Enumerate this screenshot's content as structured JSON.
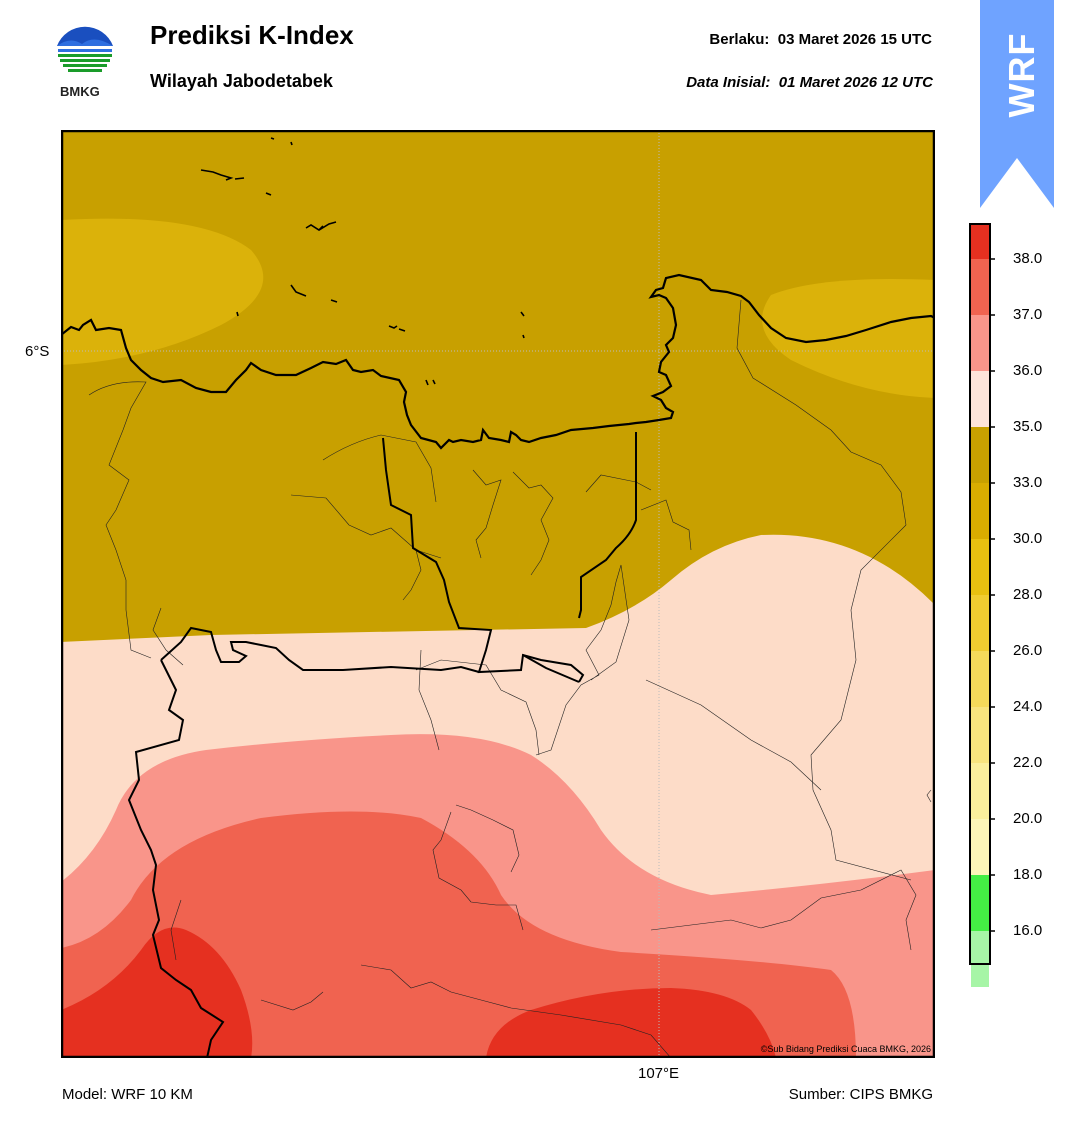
{
  "header": {
    "title": "Prediksi K-Index",
    "subtitle": "Wilayah Jabodetabek",
    "valid_line": "Berlaku:  03 Maret 2026 15 UTC",
    "init_line": "Data Inisial:  01 Maret 2026 12 UTC"
  },
  "logo": {
    "text": "BMKG",
    "name": "bmkg-logo"
  },
  "badge": {
    "text": "WRF",
    "color": "#6fa3ff"
  },
  "map": {
    "lat_label": "6°S",
    "lon_label": "107°E",
    "credit": "©Sub Bidang Prediksi Cuaca BMKG, 2026",
    "zones": [
      {
        "range": "33.0–35.0",
        "color": "#c8a000"
      },
      {
        "range": "35.0–36.0",
        "color": "#fddcc8"
      },
      {
        "range": "36.0–37.0",
        "color": "#f9958a"
      },
      {
        "range": "37.0–38.0",
        "color": "#f06350"
      },
      {
        "range": "> 38.0",
        "color": "#e53020"
      },
      {
        "range": "30.0–33.0",
        "color": "#dbb20a"
      }
    ]
  },
  "colorbar": {
    "ticks": [
      "38.0",
      "37.0",
      "36.0",
      "35.0",
      "33.0",
      "30.0",
      "28.0",
      "26.0",
      "24.0",
      "22.0",
      "20.0",
      "18.0",
      "16.0"
    ],
    "colors": [
      "#e53020",
      "#f06350",
      "#f9958a",
      "#fde4da",
      "#c8a000",
      "#d9ac00",
      "#e8c010",
      "#f0cc30",
      "#f5da5a",
      "#f8e47e",
      "#fbef9c",
      "#fdf6b8",
      "#44ee44",
      "#a6f5a6",
      "#ffffff"
    ]
  },
  "footer": {
    "model": "Model: WRF 10 KM",
    "source": "Sumber: CIPS BMKG"
  }
}
